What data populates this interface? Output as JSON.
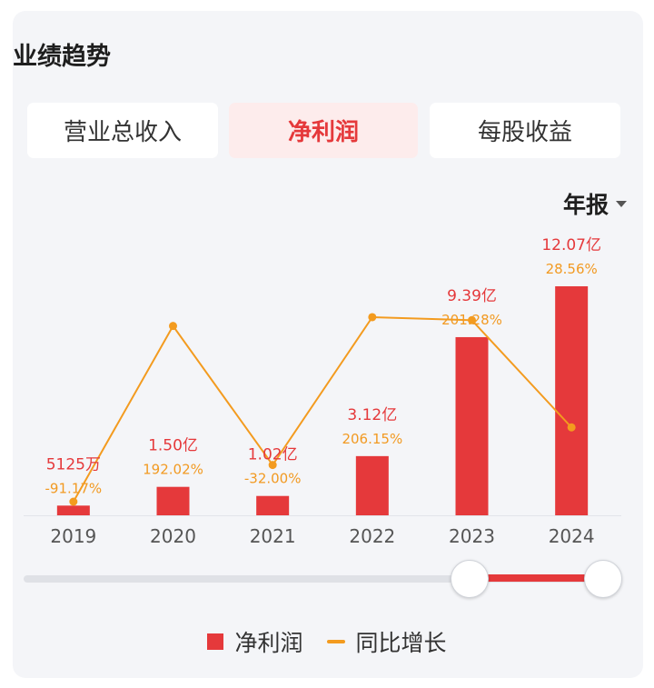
{
  "header": {
    "title": "业绩趋势"
  },
  "tabs": [
    {
      "label": "营业总收入",
      "active": false
    },
    {
      "label": "净利润",
      "active": true
    },
    {
      "label": "每股收益",
      "active": false
    }
  ],
  "period_selector": {
    "label": "年报"
  },
  "colors": {
    "accent_red": "#e5393b",
    "line_orange": "#f39b1f",
    "bar_label_red": "#e5393b",
    "pct_label_orange": "#f29a22",
    "axis_label": "#555555"
  },
  "chart_data": {
    "type": "bar",
    "categories": [
      "2019",
      "2020",
      "2021",
      "2022",
      "2023",
      "2024"
    ],
    "series": [
      {
        "name": "净利润",
        "kind": "bar",
        "values": [
          0.5125,
          1.5,
          1.02,
          3.12,
          9.39,
          12.07
        ],
        "unit": "亿",
        "labels": [
          "5125万",
          "1.50亿",
          "1.02亿",
          "3.12亿",
          "9.39亿",
          "12.07亿"
        ]
      },
      {
        "name": "同比增长",
        "kind": "line",
        "values": [
          -91.17,
          192.02,
          -32.0,
          206.15,
          201.28,
          28.56
        ],
        "unit": "%",
        "labels": [
          "-91.17%",
          "192.02%",
          "-32.00%",
          "206.15%",
          "201.28%",
          "28.56%"
        ]
      }
    ],
    "grid": false,
    "legend_position": "bottom"
  },
  "range_slider": {
    "start_fraction": 0.78,
    "end_fraction": 1.0
  },
  "legend": [
    {
      "label": "净利润",
      "color": "#e5393b",
      "shape": "bar"
    },
    {
      "label": "同比增长",
      "color": "#f39b1f",
      "shape": "line"
    }
  ]
}
